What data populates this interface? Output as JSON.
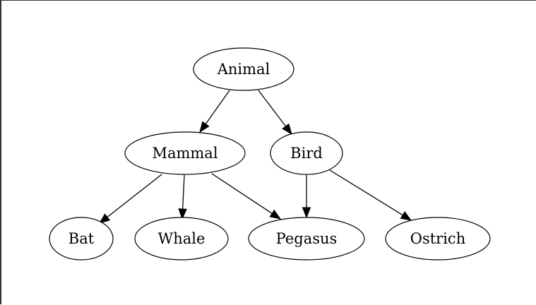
{
  "diagram": {
    "nodes": {
      "animal": "Animal",
      "mammal": "Mammal",
      "bird": "Bird",
      "bat": "Bat",
      "whale": "Whale",
      "pegasus": "Pegasus",
      "ostrich": "Ostrich"
    },
    "edges": [
      {
        "from": "Animal",
        "to": "Mammal"
      },
      {
        "from": "Animal",
        "to": "Bird"
      },
      {
        "from": "Mammal",
        "to": "Bat"
      },
      {
        "from": "Mammal",
        "to": "Whale"
      },
      {
        "from": "Mammal",
        "to": "Pegasus"
      },
      {
        "from": "Bird",
        "to": "Pegasus"
      },
      {
        "from": "Bird",
        "to": "Ostrich"
      }
    ]
  }
}
